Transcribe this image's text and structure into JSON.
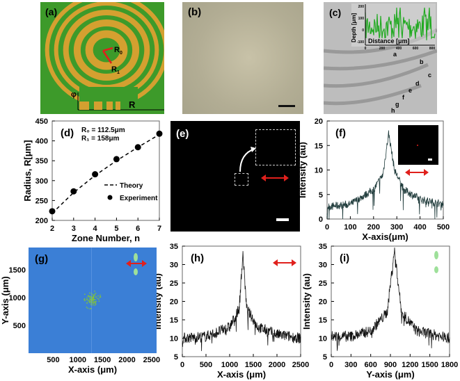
{
  "panels": {
    "a": {
      "label": "(a)",
      "r0": "R",
      "r0_sub": "0",
      "r1": "R",
      "r1_sub": "1",
      "phi": "φ",
      "axis_R": "R",
      "colors": {
        "background": "#3d9a2a",
        "ring": "#d4a030",
        "arrow": "#e0201c"
      }
    },
    "b": {
      "label": "(b)"
    },
    "c": {
      "label": "(c)",
      "inset_ylabel": "Depth [μm]",
      "inset_xlabel": "Distance [μm]",
      "inset_xticks": [
        "0",
        "200",
        "400",
        "600",
        "800"
      ],
      "inset_yticks": [
        "200",
        "100",
        "0",
        "-100"
      ],
      "inset_color": "#22aa22",
      "markers": [
        "a",
        "b",
        "c",
        "d",
        "e",
        "f",
        "g",
        "h"
      ]
    },
    "e": {
      "label": "(e)"
    },
    "g": {
      "label": "(g)"
    }
  },
  "chart_data": [
    {
      "id": "d",
      "type": "scatter",
      "label": "(d)",
      "annotation": [
        "R₀ = 112.5μm",
        "R₁ = 158μm"
      ],
      "xlabel": "Zone Number, n",
      "ylabel": "Radius, R[μm]",
      "xlim": [
        2,
        7
      ],
      "ylim": [
        200,
        450
      ],
      "xticks": [
        "2",
        "3",
        "4",
        "5",
        "6",
        "7"
      ],
      "yticks": [
        "200",
        "250",
        "300",
        "350",
        "400",
        "450"
      ],
      "legend_position": "right",
      "series": [
        {
          "name": "Theory",
          "style": "dashed",
          "x": [
            2,
            3,
            4,
            5,
            6,
            7
          ],
          "y": [
            218,
            270,
            313,
            350,
            384,
            416
          ]
        },
        {
          "name": "Experiment",
          "style": "marker",
          "x": [
            2,
            3,
            4,
            5,
            6,
            7
          ],
          "y": [
            223,
            273,
            316,
            354,
            384,
            418
          ]
        }
      ]
    },
    {
      "id": "f",
      "type": "line",
      "label": "(f)",
      "xlabel": "X-axis(μm)",
      "ylabel": "Intensity (au)",
      "xlim": [
        0,
        500
      ],
      "ylim": [
        0,
        20
      ],
      "xticks": [
        "0",
        "100",
        "200",
        "300",
        "400",
        "500"
      ],
      "yticks": [
        "0",
        "5",
        "10",
        "15",
        "20"
      ],
      "color": "#1e3a3a",
      "envelope": {
        "x": [
          0,
          100,
          200,
          240,
          265,
          290,
          330,
          400,
          500
        ],
        "y": [
          2.5,
          3,
          6,
          9,
          17.5,
          10,
          6,
          4,
          3
        ]
      }
    },
    {
      "id": "g",
      "type": "heatmap",
      "xlabel": "X-axis (μm)",
      "ylabel": "Y-axis (μm)",
      "xticks": [
        "500",
        "1000",
        "1500",
        "2000",
        "2500"
      ],
      "yticks": [
        "500",
        "1000",
        "1500"
      ],
      "xlim": [
        0,
        2600
      ],
      "ylim": [
        0,
        1900
      ],
      "peak": {
        "x": 1280,
        "y": 960
      },
      "colors": {
        "background": "#3b7fd6",
        "peak": "#7fc040"
      }
    },
    {
      "id": "h",
      "type": "line",
      "label": "(h)",
      "xlabel": "X-axis (μm)",
      "ylabel": "Intensity (au)",
      "xlim": [
        0,
        2500
      ],
      "ylim": [
        5,
        35
      ],
      "xticks": [
        "0",
        "500",
        "1000",
        "1500",
        "2000",
        "2500"
      ],
      "yticks": [
        "5",
        "10",
        "15",
        "20",
        "25",
        "30",
        "35"
      ],
      "color": "#111111",
      "envelope": {
        "x": [
          0,
          500,
          1000,
          1200,
          1280,
          1360,
          1600,
          2000,
          2500
        ],
        "y": [
          10,
          10.5,
          13,
          18,
          33,
          18,
          13,
          11,
          10
        ]
      }
    },
    {
      "id": "i",
      "type": "line",
      "label": "(i)",
      "xlabel": "Y-axis (μm)",
      "ylabel": "Intensity (au)",
      "xlim": [
        0,
        1800
      ],
      "ylim": [
        5,
        35
      ],
      "xticks": [
        "0",
        "300",
        "600",
        "900",
        "1200",
        "1500",
        "1800"
      ],
      "yticks": [
        "5",
        "10",
        "15",
        "20",
        "25",
        "30",
        "35"
      ],
      "color": "#111111",
      "envelope": {
        "x": [
          0,
          300,
          600,
          850,
          960,
          1070,
          1300,
          1800
        ],
        "y": [
          10.5,
          10.5,
          12,
          17,
          34,
          17,
          12,
          10
        ]
      }
    }
  ]
}
